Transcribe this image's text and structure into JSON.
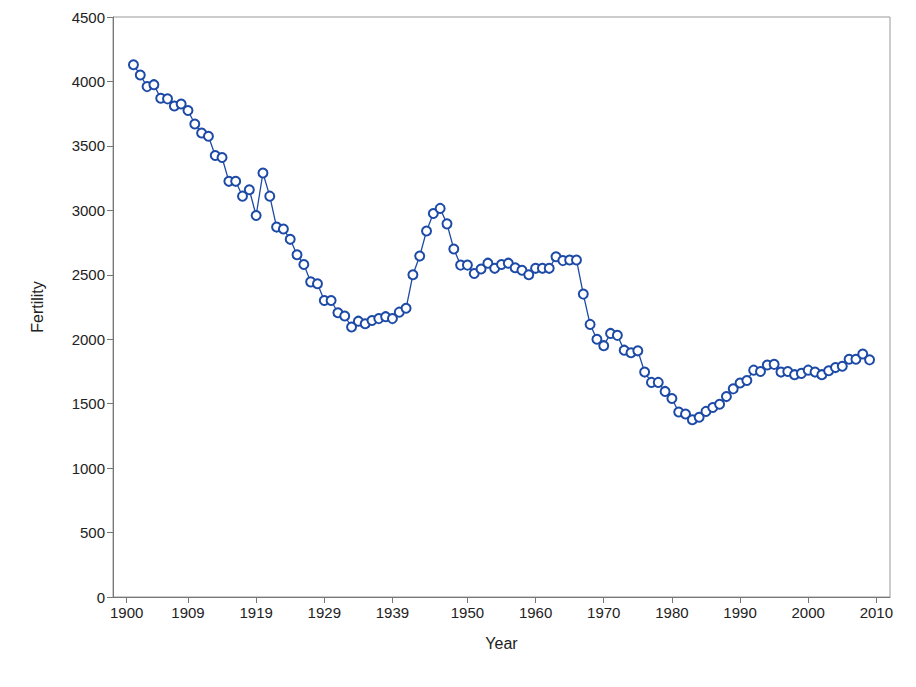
{
  "chart_data": {
    "type": "line",
    "x_label": "Year",
    "y_label": "Fertility",
    "x": [
      1901,
      1902,
      1903,
      1904,
      1905,
      1906,
      1907,
      1908,
      1909,
      1910,
      1911,
      1912,
      1913,
      1914,
      1915,
      1916,
      1917,
      1918,
      1919,
      1920,
      1921,
      1922,
      1923,
      1924,
      1925,
      1926,
      1927,
      1928,
      1929,
      1930,
      1931,
      1932,
      1933,
      1934,
      1935,
      1936,
      1937,
      1938,
      1939,
      1940,
      1941,
      1942,
      1943,
      1944,
      1945,
      1946,
      1947,
      1948,
      1949,
      1950,
      1951,
      1952,
      1953,
      1954,
      1955,
      1956,
      1957,
      1958,
      1959,
      1960,
      1961,
      1962,
      1963,
      1964,
      1965,
      1966,
      1967,
      1968,
      1969,
      1970,
      1971,
      1972,
      1973,
      1974,
      1975,
      1976,
      1977,
      1978,
      1979,
      1980,
      1981,
      1982,
      1983,
      1984,
      1985,
      1986,
      1987,
      1988,
      1989,
      1990,
      1991,
      1992,
      1993,
      1994,
      1995,
      1996,
      1997,
      1998,
      1999,
      2000,
      2001,
      2002,
      2003,
      2004,
      2005,
      2006,
      2007,
      2008,
      2009
    ],
    "values": [
      4130,
      4050,
      3960,
      3975,
      3870,
      3865,
      3810,
      3825,
      3775,
      3670,
      3600,
      3575,
      3425,
      3410,
      3225,
      3225,
      3110,
      3160,
      2960,
      3290,
      3110,
      2870,
      2855,
      2775,
      2655,
      2580,
      2445,
      2430,
      2300,
      2300,
      2205,
      2180,
      2095,
      2140,
      2120,
      2145,
      2160,
      2175,
      2160,
      2210,
      2240,
      2500,
      2645,
      2840,
      2975,
      3015,
      2895,
      2700,
      2575,
      2575,
      2510,
      2545,
      2590,
      2550,
      2580,
      2590,
      2555,
      2535,
      2500,
      2550,
      2550,
      2550,
      2640,
      2610,
      2615,
      2615,
      2350,
      2115,
      2000,
      1950,
      2045,
      2030,
      1915,
      1895,
      1910,
      1745,
      1665,
      1665,
      1595,
      1540,
      1435,
      1420,
      1375,
      1395,
      1440,
      1470,
      1495,
      1555,
      1615,
      1660,
      1680,
      1760,
      1750,
      1800,
      1805,
      1745,
      1750,
      1725,
      1735,
      1760,
      1745,
      1725,
      1755,
      1780,
      1790,
      1845,
      1845,
      1885,
      1840
    ],
    "color": "#1c4aa6",
    "marker": "circle",
    "line_style": "solid",
    "xlim": [
      1898,
      2012
    ],
    "xticks": [
      1900,
      1909,
      1919,
      1929,
      1939,
      1950,
      1960,
      1970,
      1980,
      1990,
      2000,
      2010
    ],
    "ylim": [
      0,
      4500
    ],
    "yticks": [
      0,
      500,
      1000,
      1500,
      2000,
      2500,
      3000,
      3500,
      4000,
      4500
    ],
    "grid": false
  }
}
